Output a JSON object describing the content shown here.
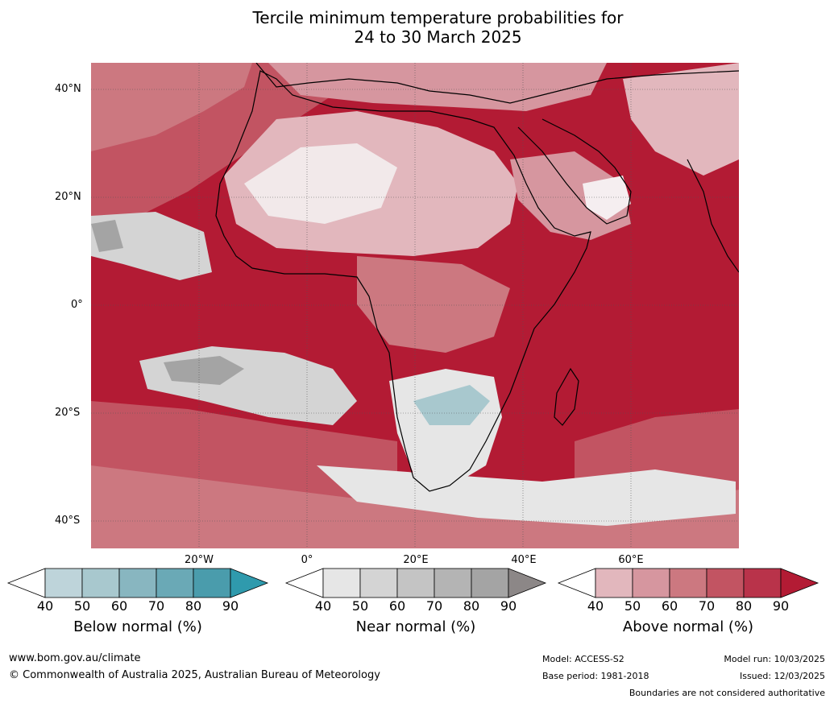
{
  "title": {
    "line1": "Tercile minimum temperature probabilities for",
    "line2": "24 to 30 March 2025"
  },
  "map": {
    "lat_labels": [
      "40°N",
      "20°N",
      "0°",
      "20°S",
      "40°S"
    ],
    "lon_labels": [
      "20°W",
      "0°",
      "20°E",
      "40°E",
      "60°E"
    ]
  },
  "colorbars": [
    {
      "label": "Below normal (%)",
      "ticks": [
        "40",
        "50",
        "60",
        "70",
        "80",
        "90"
      ],
      "colors": [
        "#ffffff",
        "#bed4da",
        "#a8c8ce",
        "#88b6c0",
        "#6aa9b6",
        "#4a9cac",
        "#2f9aad"
      ]
    },
    {
      "label": "Near normal (%)",
      "ticks": [
        "40",
        "50",
        "60",
        "70",
        "80",
        "90"
      ],
      "colors": [
        "#ffffff",
        "#e6e6e6",
        "#d4d4d4",
        "#c4c4c4",
        "#b4b4b4",
        "#a4a4a4",
        "#8c8787"
      ]
    },
    {
      "label": "Above normal (%)",
      "ticks": [
        "40",
        "50",
        "60",
        "70",
        "80",
        "90"
      ],
      "colors": [
        "#ffffff",
        "#e2b7bd",
        "#d6969f",
        "#cc7880",
        "#c25462",
        "#b9334a",
        "#b31b34"
      ]
    }
  ],
  "footer": {
    "website": "www.bom.gov.au/climate",
    "copyright": "© Commonwealth of Australia 2025, Australian Bureau of Meteorology",
    "model": "Model: ACCESS-S2",
    "base_period": "Base period: 1981-2018",
    "model_run": "Model run: 10/03/2025",
    "issued": "Issued: 12/03/2025",
    "boundaries_note": "Boundaries are not considered authoritative"
  }
}
